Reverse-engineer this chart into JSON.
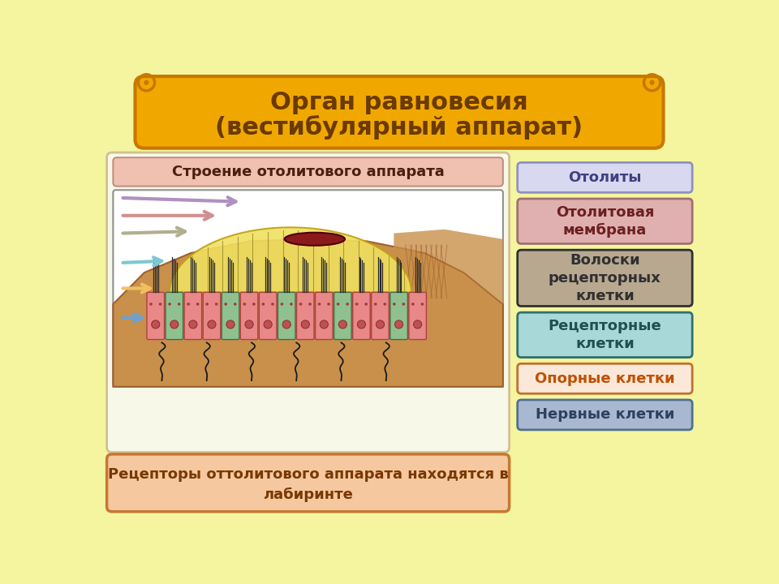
{
  "bg_color": "#f5f5a0",
  "title_line1": "Орган равновесия",
  "title_line2": "(вестибулярный аппарат)",
  "title_bg": "#f0a800",
  "title_text_color": "#6b3a00",
  "title_border": "#c87800",
  "left_header": "Строение отолитового аппарата",
  "left_header_bg": "#f0c0b0",
  "left_header_border": "#c09080",
  "bottom_box_text1": "Рецепторы оттолитового аппарата находятся в",
  "bottom_box_text2": "лабиринте",
  "bottom_box_bg": "#f5c8a0",
  "bottom_box_border": "#c87830",
  "bottom_box_text_color": "#7a3800",
  "right_boxes": [
    {
      "text": "Отолиты",
      "bg": "#d8d8f0",
      "border": "#9090c0",
      "text_color": "#404080"
    },
    {
      "text": "Отолитовая\nмембрана",
      "bg": "#e0b0b0",
      "border": "#a07070",
      "text_color": "#6b2020"
    },
    {
      "text": "Волоски\nрецепторных\nклетки",
      "bg": "#b8a890",
      "border": "#303030",
      "text_color": "#303030"
    },
    {
      "text": "Рецепторные\nклетки",
      "bg": "#a8d8d8",
      "border": "#307070",
      "text_color": "#205050"
    },
    {
      "text": "Опорные клетки",
      "bg": "#fce8d8",
      "border": "#c07030",
      "text_color": "#c05000"
    },
    {
      "text": "Нервные клетки",
      "bg": "#a8b8d0",
      "border": "#507090",
      "text_color": "#304060"
    }
  ],
  "box_heights": [
    48,
    72,
    90,
    72,
    48,
    48
  ]
}
